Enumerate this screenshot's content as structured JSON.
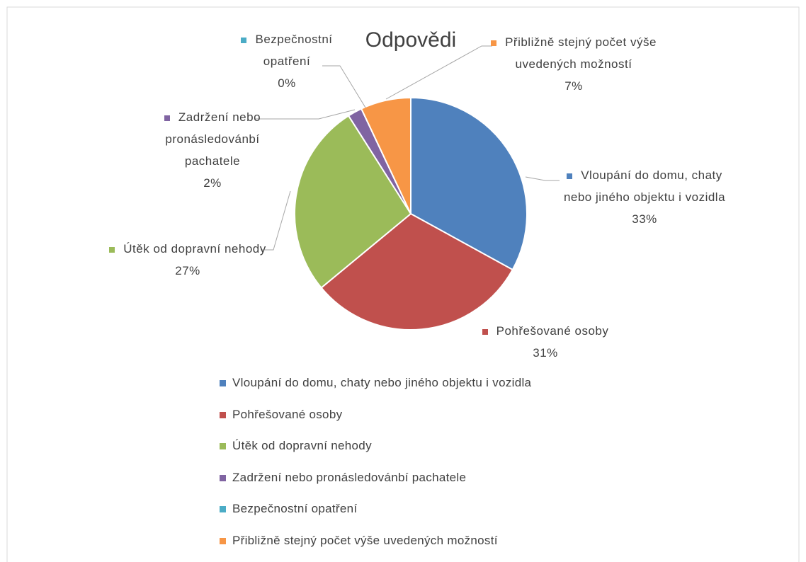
{
  "chart_data": {
    "type": "pie",
    "title": "Odpovědi",
    "categories": [
      "Vloupání do domu, chaty nebo jiného objektu i vozidla",
      "Pohřešované osoby",
      "Útěk od dopravní nehody",
      "Zadržení nebo pronásledovánbí pachatele",
      "Bezpečnostní opatření",
      "Přibližně stejný počet výše uvedených možností"
    ],
    "values": [
      33,
      31,
      27,
      2,
      0,
      7
    ],
    "value_labels": [
      "33%",
      "31%",
      "27%",
      "2%",
      "0%",
      "7%"
    ],
    "colors": [
      "#4f81bd",
      "#c0504d",
      "#9bbb59",
      "#8064a2",
      "#4bacc6",
      "#f79646"
    ],
    "legend": "bottom"
  }
}
